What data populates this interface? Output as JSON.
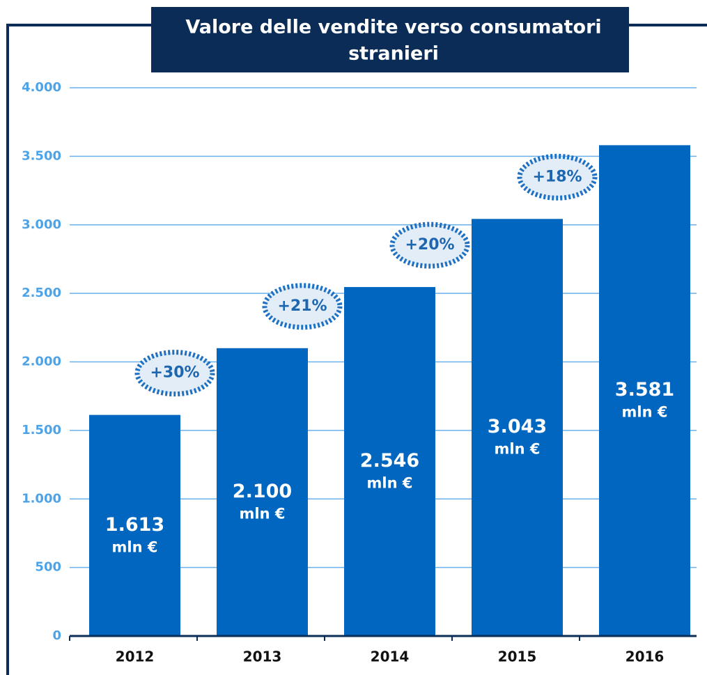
{
  "chart_data": {
    "type": "bar",
    "title_lines": [
      "Valore delle vendite verso consumatori",
      "stranieri"
    ],
    "categories": [
      "2012",
      "2013",
      "2014",
      "2015",
      "2016"
    ],
    "values": [
      1613,
      2100,
      2546,
      3043,
      3581
    ],
    "value_labels": [
      "1.613",
      "2.100",
      "2.546",
      "3.043",
      "3.581"
    ],
    "value_unit": "mln €",
    "growth_labels": [
      "+30%",
      "+21%",
      "+20%",
      "+18%"
    ],
    "color": "#0066c0",
    "ylim": [
      0,
      4000
    ],
    "yticks": [
      0,
      500,
      {
        "value": 1000,
        "label": "1.000"
      },
      {
        "value": 1500,
        "label": "1.500"
      },
      {
        "value": 2000,
        "label": "2.000"
      },
      {
        "value": 2500,
        "label": "2.500"
      },
      {
        "value": 3000,
        "label": "3.000"
      },
      {
        "value": 3500,
        "label": "3.500"
      },
      {
        "value": 4000,
        "label": "4.000"
      }
    ],
    "grid": true
  }
}
